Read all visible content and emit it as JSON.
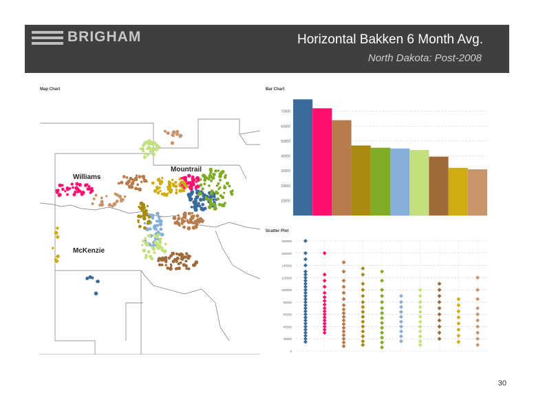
{
  "header": {
    "logo_text": "BRIGHAM",
    "title": "Horizontal Bakken 6 Month Avg.",
    "subtitle": "North Dakota:  Post-2008"
  },
  "panels": {
    "map_label": "Map Chart",
    "bar_label": "Bar Chart",
    "scatter_label": "Scatter Plot"
  },
  "map": {
    "counties": [
      {
        "name": "Williams"
      },
      {
        "name": "Mountrail"
      },
      {
        "name": "McKenzie"
      }
    ]
  },
  "colors": [
    "#3a6b9a",
    "#ff0f6e",
    "#b87c4c",
    "#a88a10",
    "#80ab24",
    "#86aed8",
    "#c2e07e",
    "#9e6a3a",
    "#cfac12",
    "#c8956a"
  ],
  "chart_data": [
    {
      "type": "bar",
      "title": "Bar Chart",
      "ylabel": "",
      "xlabel": "",
      "ylim": [
        0,
        80000
      ],
      "yticks": [
        0,
        10000,
        20000,
        30000,
        40000,
        50000,
        60000,
        70000
      ],
      "ytick_labels": [
        "",
        "10000",
        "20000",
        "30000",
        "40000",
        "50000",
        "60000",
        "70000"
      ],
      "values": [
        78000,
        72000,
        64000,
        47000,
        45500,
        45000,
        44000,
        39500,
        32000,
        31000
      ]
    },
    {
      "type": "scatter",
      "title": "Scatter Plot",
      "ylabel": "",
      "xlabel": "",
      "ylim": [
        0,
        180000
      ],
      "yticks": [
        0,
        20000,
        40000,
        60000,
        80000,
        100000,
        120000,
        140000,
        160000,
        180000
      ],
      "ytick_labels": [
        "0",
        "20000",
        "40000",
        "60000",
        "80000",
        "100000",
        "120000",
        "140000",
        "160000",
        "180000"
      ],
      "series": [
        {
          "values": [
            180000,
            160000,
            150000,
            140000,
            130000,
            125000,
            120000,
            115000,
            110000,
            105000,
            100000,
            95000,
            90000,
            85000,
            80000,
            75000,
            70000,
            65000,
            60000,
            55000,
            50000,
            45000,
            40000,
            35000,
            30000,
            25000,
            20000,
            15000
          ]
        },
        {
          "values": [
            160000,
            125000,
            115000,
            105000,
            95000,
            88000,
            82000,
            76000,
            70000,
            65000,
            60000,
            55000,
            50000,
            45000,
            40000,
            35000,
            30000
          ]
        },
        {
          "values": [
            145000,
            130000,
            115000,
            105000,
            95000,
            85000,
            75000,
            68000,
            62000,
            56000,
            50000,
            44000,
            38000,
            32000,
            26000,
            20000,
            14000,
            8000
          ]
        },
        {
          "values": [
            135000,
            125000,
            110000,
            100000,
            90000,
            80000,
            72000,
            64000,
            56000,
            48000,
            40000,
            32000,
            24000,
            16000,
            10000
          ]
        },
        {
          "values": [
            130000,
            115000,
            100000,
            90000,
            80000,
            70000,
            62000,
            54000,
            46000,
            38000,
            30000,
            22000,
            14000,
            6000
          ]
        },
        {
          "values": [
            90000,
            80000,
            72000,
            64000,
            56000,
            48000,
            40000,
            32000,
            24000,
            16000
          ]
        },
        {
          "values": [
            100000,
            90000,
            80000,
            72000,
            64000,
            56000,
            48000,
            40000,
            32000,
            24000,
            16000,
            10000
          ]
        },
        {
          "values": [
            110000,
            100000,
            90000,
            80000,
            70000,
            60000,
            50000,
            40000,
            30000,
            20000
          ]
        },
        {
          "values": [
            85000,
            75000,
            65000,
            55000,
            45000,
            35000,
            25000,
            15000
          ]
        },
        {
          "values": [
            120000,
            100000,
            85000,
            70000,
            60000,
            50000,
            40000,
            30000,
            20000,
            10000
          ]
        }
      ]
    }
  ],
  "page_number": "30"
}
